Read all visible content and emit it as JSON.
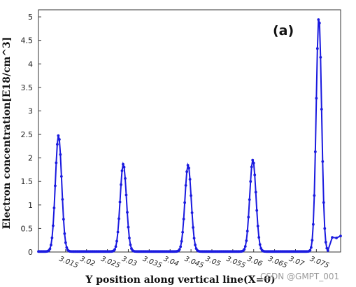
{
  "chart_data": {
    "type": "line",
    "title": "",
    "panel_label": "(a)",
    "xlabel": "Y position along vertical line(X=0)",
    "ylabel": "Electron concentration[E18/cm^3]",
    "watermark": "CSDN @GMPT_001",
    "xlim": [
      3.0085,
      3.0808
    ],
    "ylim": [
      0,
      5.15
    ],
    "x_ticks": [
      3.015,
      3.02,
      3.025,
      3.03,
      3.035,
      3.04,
      3.045,
      3.05,
      3.055,
      3.06,
      3.065,
      3.07,
      3.075
    ],
    "x_tick_labels": [
      "3.015",
      "3.02",
      "3.025",
      "3.03",
      "3.035",
      "3.04",
      "3.045",
      "3.05",
      "3.055",
      "3.06",
      "3.065",
      "3.07",
      "3.075"
    ],
    "y_ticks": [
      0,
      0.5,
      1,
      1.5,
      2,
      2.5,
      3,
      3.5,
      4,
      4.5,
      5
    ],
    "y_tick_labels": [
      "0",
      "0.5",
      "1",
      "1.5",
      "2",
      "2.5",
      "3",
      "3.5",
      "4",
      "4.5",
      "5"
    ],
    "series_color": "#1a1adf",
    "baseline": 0.01,
    "peaks": [
      {
        "center": 3.0133,
        "height": 2.47,
        "sigma": 0.00075
      },
      {
        "center": 3.0288,
        "height": 1.86,
        "sigma": 0.00075
      },
      {
        "center": 3.0443,
        "height": 1.84,
        "sigma": 0.00075
      },
      {
        "center": 3.0598,
        "height": 1.95,
        "sigma": 0.00075
      },
      {
        "center": 3.0756,
        "height": 4.99,
        "sigma": 0.00065
      }
    ],
    "tail": {
      "start": 3.0778,
      "end": 3.0808,
      "values": [
        0.36,
        0.31,
        0.3,
        0.34
      ]
    },
    "sample_step": 0.00025,
    "grid": false,
    "legend": "none"
  }
}
